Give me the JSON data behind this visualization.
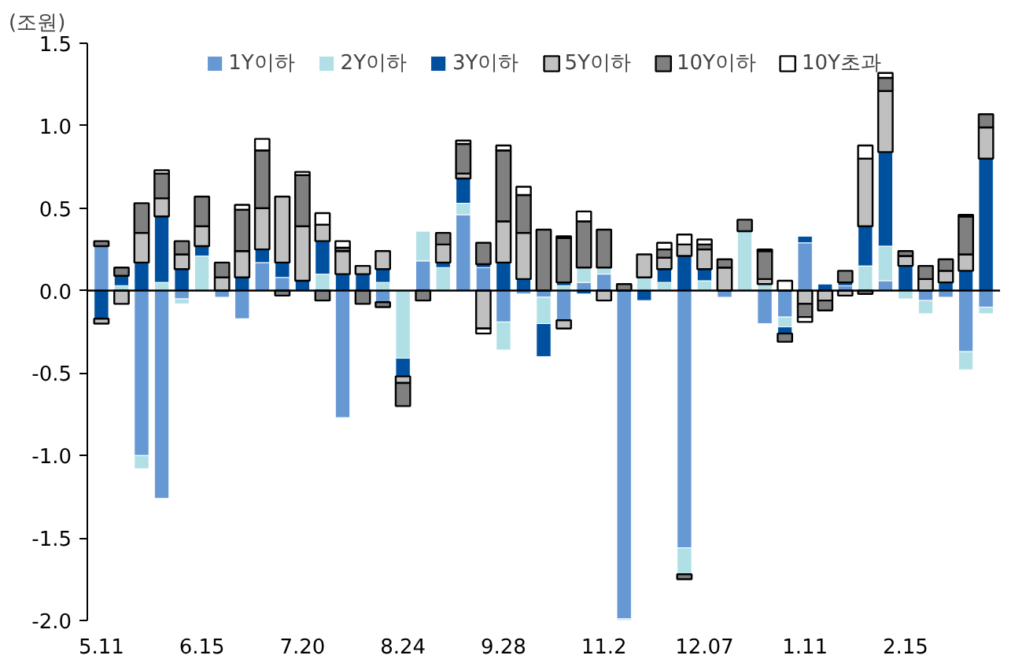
{
  "chart_data": {
    "type": "bar",
    "stacked": true,
    "ylabel": "(조원)",
    "categories": [
      "5.11",
      null,
      null,
      null,
      null,
      "6.15",
      null,
      null,
      null,
      null,
      "7.20",
      null,
      null,
      null,
      null,
      "8.24",
      null,
      null,
      null,
      null,
      "9.28",
      null,
      null,
      null,
      null,
      "11.2",
      null,
      null,
      null,
      null,
      "12.07",
      null,
      null,
      null,
      null,
      "1.11",
      null,
      null,
      null,
      null,
      "2.15",
      null,
      null,
      null,
      null
    ],
    "ylim": [
      -2.0,
      1.5
    ],
    "yticks": [
      {
        "value": -2,
        "label": "-2.0"
      },
      {
        "value": -1.5,
        "label": "-1.5"
      },
      {
        "value": -1,
        "label": "-1.0"
      },
      {
        "value": -0.5,
        "label": "-0.5"
      },
      {
        "value": 0,
        "label": "0.0"
      },
      0.5,
      {
        "value": 1,
        "label": "1.0"
      },
      1.5
    ],
    "legend": "top",
    "ref_lines": [
      {
        "axis": "y",
        "value": 0,
        "color": "#000000"
      }
    ],
    "series": [
      {
        "name": "1Y이하",
        "color": "#6699d4",
        "values": [
          0.27,
          null,
          -1.0,
          -1.26,
          -0.05,
          null,
          -0.04,
          -0.17,
          0.17,
          0.08,
          null,
          null,
          -0.77,
          null,
          -0.07,
          null,
          0.18,
          null,
          0.46,
          0.14,
          -0.19,
          -0.02,
          -0.04,
          -0.18,
          0.05,
          0.1,
          -1.99,
          null,
          null,
          -1.56,
          null,
          -0.04,
          null,
          -0.2,
          -0.16,
          0.29,
          null,
          0.03,
          null,
          0.06,
          null,
          -0.06,
          -0.04,
          -0.37,
          -0.1
        ]
      },
      {
        "name": "2Y이하",
        "color": "#b0e0e6",
        "values": [
          null,
          0.03,
          -0.08,
          0.05,
          -0.03,
          0.21,
          null,
          null,
          null,
          null,
          null,
          0.1,
          null,
          null,
          0.05,
          -0.41,
          0.18,
          0.14,
          0.07,
          null,
          -0.17,
          null,
          -0.16,
          0.03,
          0.09,
          0.04,
          -0.01,
          0.08,
          0.05,
          -0.16,
          0.06,
          null,
          0.36,
          0.04,
          -0.06,
          null,
          null,
          null,
          0.15,
          0.21,
          -0.05,
          -0.08,
          null,
          -0.11,
          -0.04
        ]
      },
      {
        "name": "3Y이하",
        "color": "#0050a0",
        "values": [
          -0.17,
          0.06,
          0.17,
          0.4,
          0.13,
          0.06,
          null,
          0.08,
          0.08,
          0.09,
          0.06,
          0.2,
          0.1,
          0.1,
          0.08,
          -0.11,
          null,
          0.03,
          0.15,
          0.02,
          0.17,
          0.07,
          -0.2,
          0.02,
          -0.02,
          null,
          null,
          -0.06,
          0.08,
          0.21,
          0.07,
          null,
          null,
          null,
          -0.04,
          0.04,
          0.04,
          0.02,
          0.24,
          0.57,
          0.15,
          null,
          0.05,
          0.12,
          0.8
        ]
      },
      {
        "name": "5Y이하",
        "color": "#c0c0c0",
        "values": [
          -0.03,
          -0.08,
          0.18,
          0.11,
          0.09,
          0.12,
          0.08,
          0.16,
          0.25,
          0.4,
          0.33,
          0.1,
          0.14,
          0.05,
          0.11,
          -0.04,
          null,
          0.11,
          0.03,
          -0.23,
          0.25,
          0.28,
          null,
          -0.05,
          null,
          -0.06,
          null,
          0.14,
          0.07,
          0.07,
          0.12,
          0.14,
          null,
          0.03,
          null,
          -0.08,
          -0.06,
          -0.03,
          0.41,
          0.37,
          0.06,
          0.07,
          0.07,
          0.1,
          0.19
        ]
      },
      {
        "name": "10Y이하",
        "color": "#808080",
        "values": [
          0.03,
          0.05,
          0.18,
          0.15,
          0.08,
          0.18,
          0.09,
          0.25,
          0.35,
          -0.03,
          0.31,
          -0.06,
          0.02,
          -0.08,
          -0.03,
          -0.14,
          -0.06,
          0.07,
          0.18,
          0.13,
          0.43,
          0.23,
          0.37,
          0.27,
          0.28,
          0.23,
          0.04,
          null,
          0.05,
          -0.03,
          0.03,
          0.05,
          0.07,
          0.17,
          -0.05,
          -0.08,
          -0.06,
          0.07,
          -0.02,
          0.08,
          0.03,
          0.08,
          0.07,
          0.23,
          0.08
        ]
      },
      {
        "name": "10Y초과",
        "color": "#ffffff",
        "values": [
          null,
          null,
          null,
          0.02,
          null,
          null,
          null,
          0.03,
          0.07,
          null,
          0.02,
          0.07,
          0.04,
          null,
          null,
          null,
          null,
          null,
          0.02,
          -0.03,
          0.03,
          0.05,
          null,
          0.01,
          0.06,
          null,
          null,
          null,
          0.04,
          0.06,
          0.03,
          null,
          null,
          0.01,
          0.06,
          -0.03,
          null,
          null,
          0.08,
          0.03,
          null,
          null,
          null,
          0.01,
          null
        ]
      }
    ]
  }
}
